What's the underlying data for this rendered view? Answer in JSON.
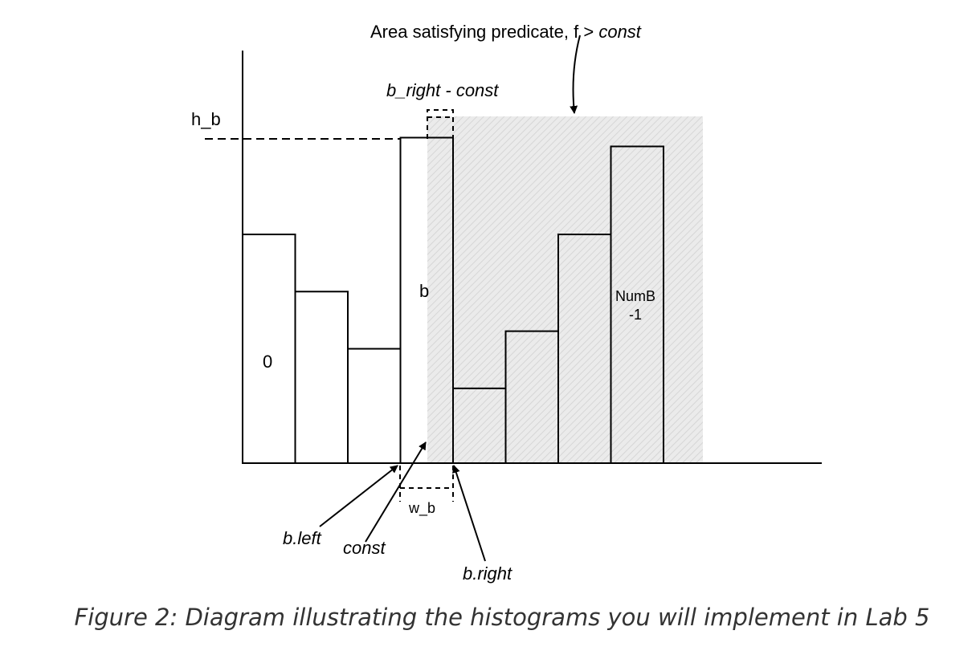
{
  "labels": {
    "predicate_prefix": "Area satisfying predicate, f > ",
    "predicate_const": "const",
    "b_right_minus_const": "b_right - const",
    "h_b": "h_b",
    "bin_zero": "0",
    "bin_b": "b",
    "bin_last_line1": "NumB",
    "bin_last_line2": "-1",
    "w_b": "w_b",
    "b_left": "b.left",
    "const": "const",
    "b_right": "b.right"
  },
  "caption": "Figure 2: Diagram illustrating the histograms you will implement in Lab 5",
  "histogram": {
    "bin_heights": [
      0.52,
      0.39,
      0.26,
      0.74,
      0.17,
      0.3,
      0.52,
      0.72
    ],
    "highlighted_bin_index": 3
  },
  "colors": {
    "stroke": "#000000",
    "shaded_area": "#e6e6e6",
    "caption_text": "#333333"
  }
}
